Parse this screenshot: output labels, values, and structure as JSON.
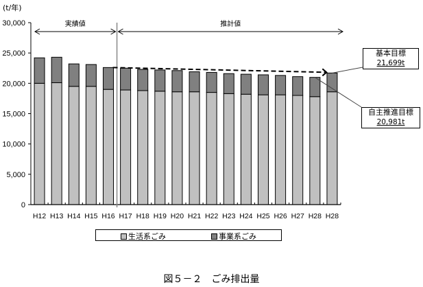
{
  "chart_data": {
    "type": "bar",
    "stacked": true,
    "title": "図５－２　ごみ排出量",
    "ylabel": "(t/年)",
    "xlabel": "",
    "ylim": [
      0,
      30000
    ],
    "yticks": [
      0,
      5000,
      10000,
      15000,
      20000,
      25000,
      30000
    ],
    "ytick_labels": [
      "0",
      "5,000",
      "10,000",
      "15,000",
      "20,000",
      "25,000",
      "30,000"
    ],
    "grid": false,
    "legend_position": "bottom",
    "categories": [
      "H12",
      "H13",
      "H14",
      "H15",
      "H16",
      "H17",
      "H18",
      "H19",
      "H20",
      "H21",
      "H22",
      "H23",
      "H24",
      "H25",
      "H26",
      "H27",
      "H28",
      "H28"
    ],
    "series": [
      {
        "name": "生活系ごみ",
        "color": "#c0c0c0",
        "values": [
          20000,
          20100,
          19500,
          19500,
          19000,
          18900,
          18800,
          18700,
          18600,
          18600,
          18500,
          18300,
          18200,
          18100,
          18100,
          18000,
          17800,
          18600
        ]
      },
      {
        "name": "事業系ごみ",
        "color": "#808080",
        "values": [
          4200,
          4200,
          3700,
          3600,
          3600,
          3600,
          3500,
          3500,
          3500,
          3300,
          3300,
          3300,
          3300,
          3300,
          3200,
          3100,
          3181,
          3099
        ]
      }
    ],
    "totals": [
      24200,
      24300,
      23200,
      23100,
      22600,
      22500,
      22300,
      22200,
      22100,
      21900,
      21800,
      21600,
      21500,
      21400,
      21300,
      21100,
      20981,
      21699
    ],
    "annotations": [
      {
        "type": "span",
        "label": "実績値",
        "from": "H12",
        "to": "H16"
      },
      {
        "type": "span",
        "label": "推計値",
        "from": "H17",
        "to": "H28"
      },
      {
        "type": "divider",
        "between": [
          "H16",
          "H17"
        ]
      },
      {
        "type": "trend-arrow",
        "style": "dashed",
        "from_value": 22600,
        "to_value": 21699
      },
      {
        "type": "callout",
        "title": "基本目標",
        "value": "21,699t",
        "target_category_index": 17
      },
      {
        "type": "callout",
        "title": "自主推進目標",
        "value": "20,981t",
        "target_category_index": 16
      }
    ]
  },
  "labels": {
    "unit": "(t/年)",
    "span_actual": "実績値",
    "span_estimate": "推計値",
    "legend_living": "生活系ごみ",
    "legend_business": "事業系ごみ",
    "callout_basic_title": "基本目標",
    "callout_basic_value": "21,699t",
    "callout_self_title": "自主推進目標",
    "callout_self_value": "20,981t",
    "caption": "図５－２　ごみ排出量"
  }
}
